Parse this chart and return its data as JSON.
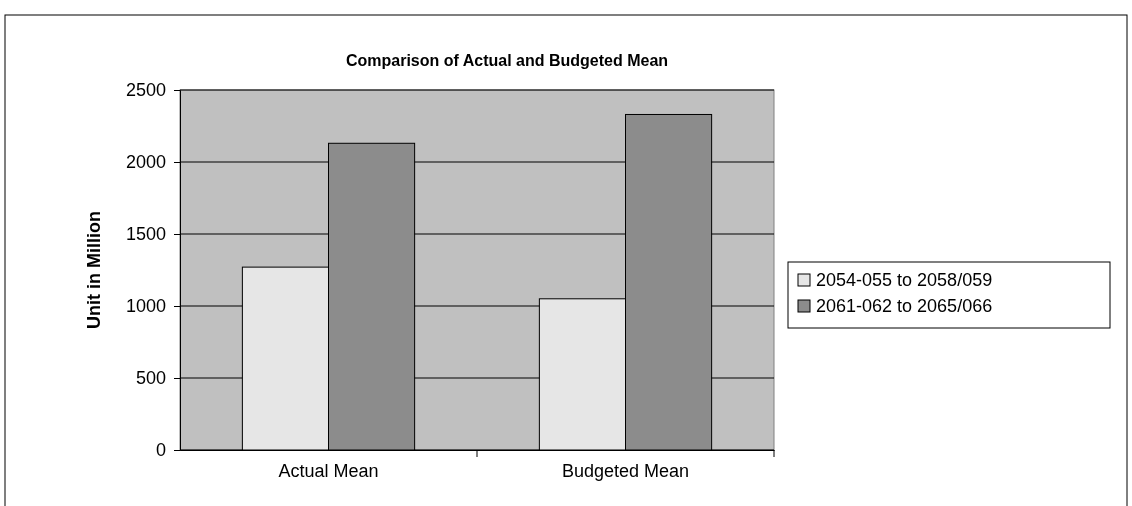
{
  "chart_data": {
    "type": "bar",
    "title": "Comparison of Actual and Budgeted Mean",
    "ylabel": "Unit in Million",
    "categories": [
      "Actual Mean",
      "Budgeted Mean"
    ],
    "series": [
      {
        "name": "2054-055 to 2058/059",
        "color": "#e6e6e6",
        "values": [
          1270,
          1050
        ]
      },
      {
        "name": "2061-062 to 2065/066",
        "color": "#8c8c8c",
        "values": [
          2130,
          2330
        ]
      }
    ],
    "ylim": [
      0,
      2500
    ],
    "yticks": [
      0,
      500,
      1000,
      1500,
      2000,
      2500
    ],
    "grid": "y",
    "legend": "right"
  }
}
